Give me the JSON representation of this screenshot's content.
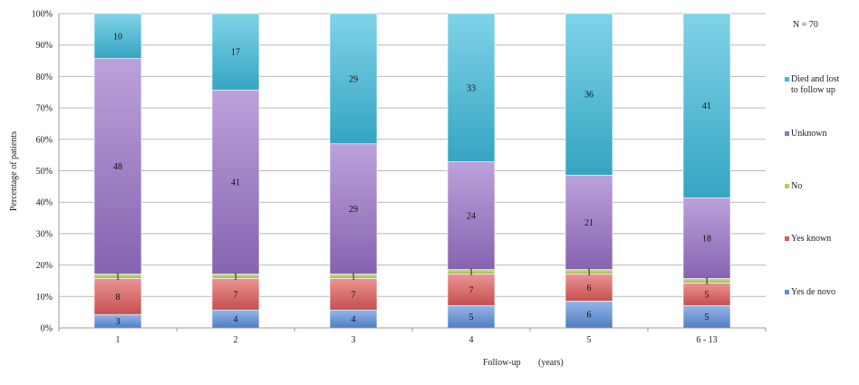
{
  "chart_data": {
    "type": "bar",
    "stacked": true,
    "normalized_percent": true,
    "categories": [
      "1",
      "2",
      "3",
      "4",
      "5",
      "6 - 13"
    ],
    "series": [
      {
        "name": "Yes de novo",
        "values": [
          3,
          4,
          4,
          5,
          6,
          5
        ],
        "color": "#5b8fdc"
      },
      {
        "name": "Yes known",
        "values": [
          8,
          7,
          7,
          7,
          6,
          5
        ],
        "color": "#e05a5a"
      },
      {
        "name": "No",
        "values": [
          1,
          1,
          1,
          1,
          1,
          1
        ],
        "color": "#b7cf5a"
      },
      {
        "name": "Unknown",
        "values": [
          48,
          41,
          29,
          24,
          21,
          18
        ],
        "color": "#9870c8"
      },
      {
        "name": "Died and lost to follow up",
        "values": [
          10,
          17,
          29,
          33,
          36,
          41
        ],
        "color": "#3cbcdc"
      }
    ],
    "legend_lines": [
      [
        "Yes de novo"
      ],
      [
        "Yes known"
      ],
      [
        "No"
      ],
      [
        "Unknown"
      ],
      [
        "Died and lost",
        "to follow up"
      ]
    ],
    "y_ticks": [
      "0%",
      "10%",
      "20%",
      "30%",
      "40%",
      "50%",
      "60%",
      "70%",
      "80%",
      "90%",
      "100%"
    ],
    "ylim": [
      0,
      100
    ],
    "ylabel": "Percentage of patients",
    "xlabel_part1": "Follow-up",
    "xlabel_part2": "(years)",
    "annotation": "N = 70",
    "grid": true,
    "legend_position": "right"
  }
}
